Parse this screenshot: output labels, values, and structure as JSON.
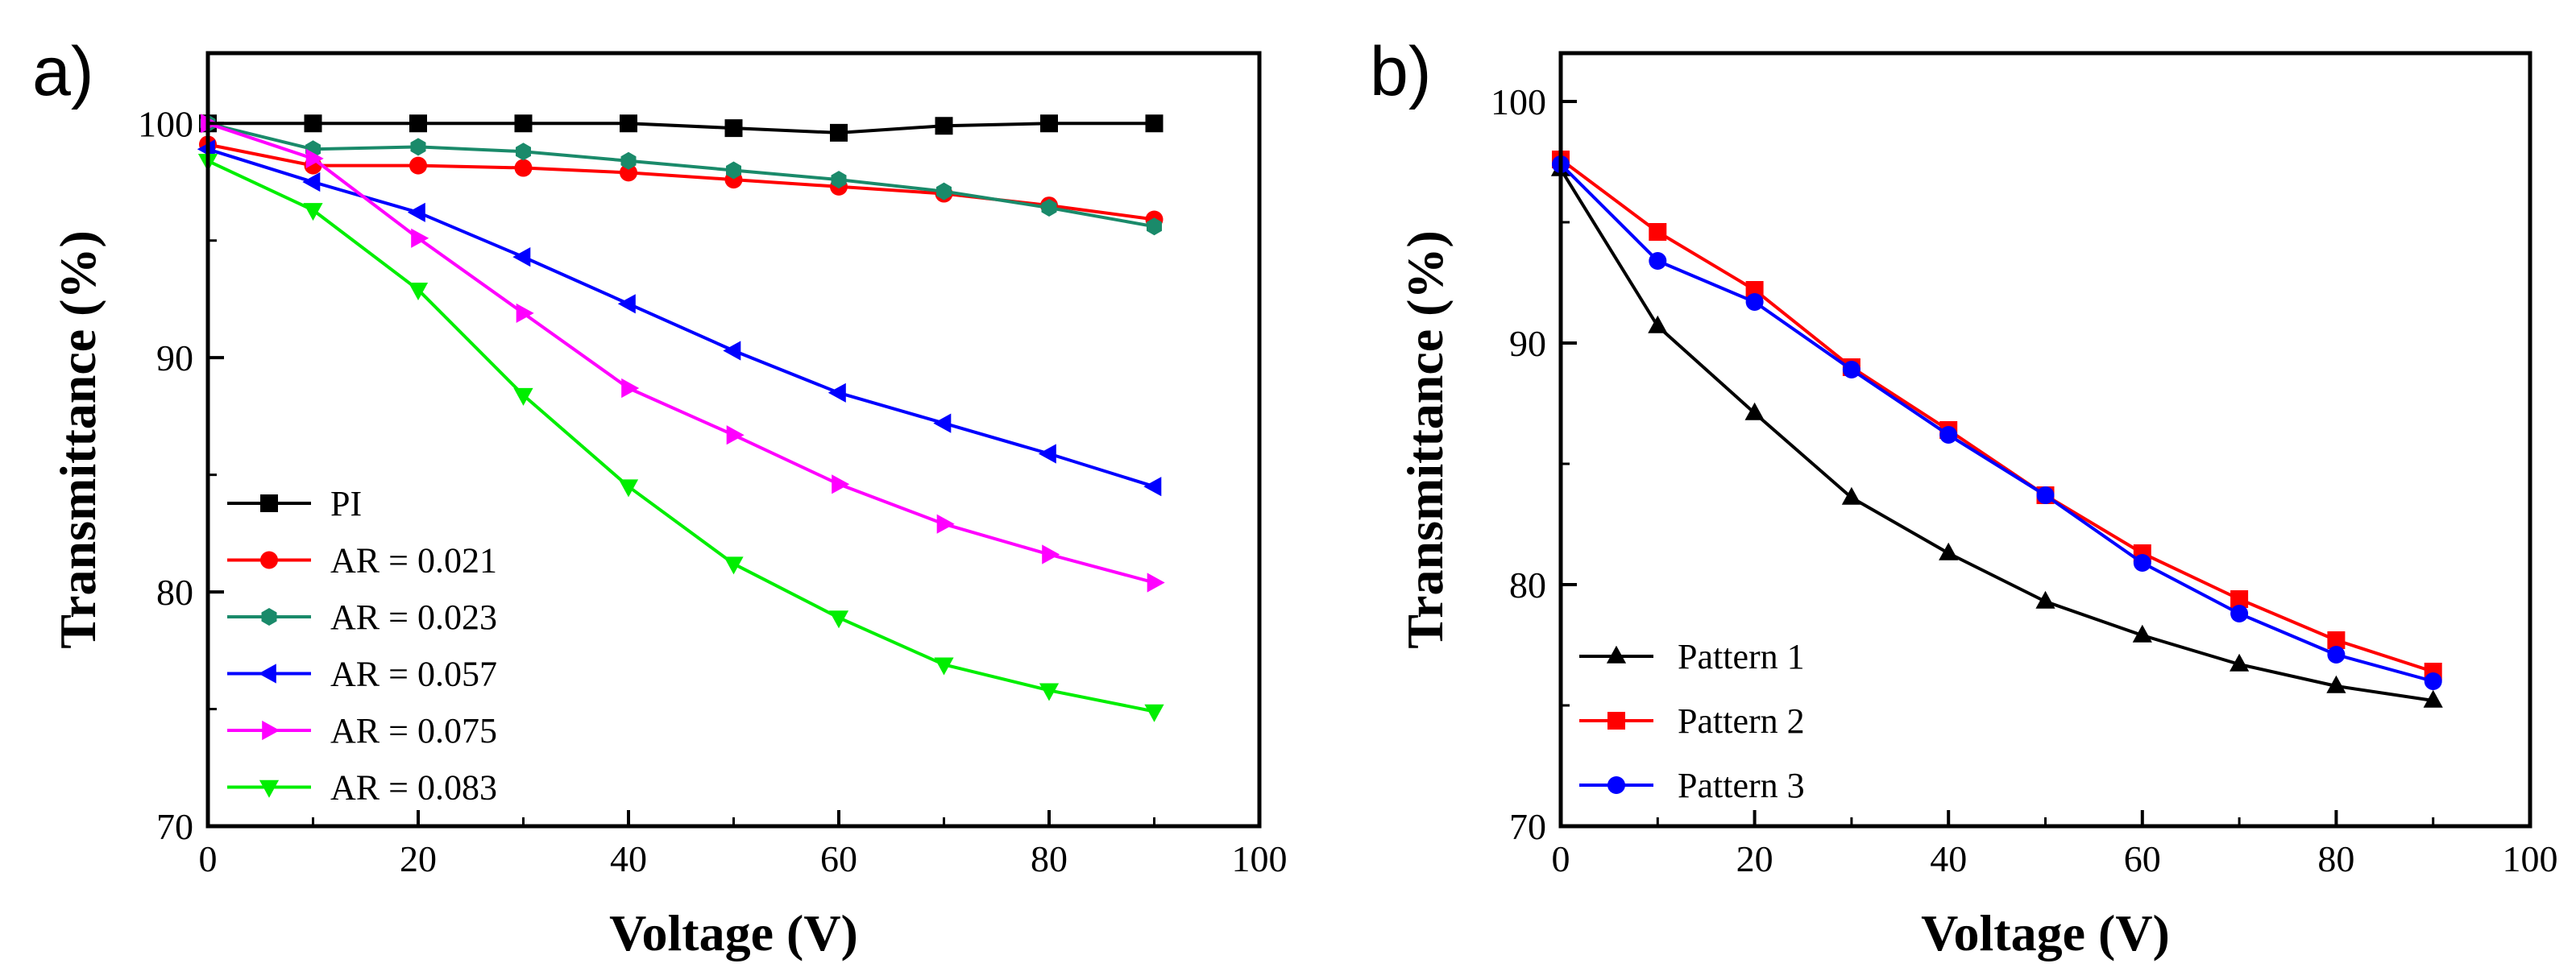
{
  "chart_data": [
    {
      "type": "line",
      "panel_label": "a)",
      "xlabel": "Voltage (V)",
      "ylabel": "Transmittance (%)",
      "xlim": [
        0,
        100
      ],
      "ylim": [
        70,
        103
      ],
      "xticks": [
        0,
        20,
        40,
        60,
        80,
        100
      ],
      "yticks": [
        70,
        80,
        90,
        100
      ],
      "x": [
        0,
        10,
        20,
        30,
        40,
        50,
        60,
        70,
        80,
        90
      ],
      "legend_position": "bottom-left",
      "series": [
        {
          "name": "PI",
          "color": "#000000",
          "marker": "square",
          "values": [
            100,
            100,
            100,
            100,
            100,
            99.8,
            99.6,
            99.9,
            100,
            100
          ]
        },
        {
          "name": "AR = 0.021",
          "color": "#ff0000",
          "marker": "circle",
          "values": [
            99.1,
            98.2,
            98.2,
            98.1,
            97.9,
            97.6,
            97.3,
            97.0,
            96.5,
            95.9
          ]
        },
        {
          "name": "AR = 0.023",
          "color": "#1a8a6a",
          "marker": "hexagon",
          "values": [
            100,
            98.9,
            99.0,
            98.8,
            98.4,
            98.0,
            97.6,
            97.1,
            96.4,
            95.6
          ]
        },
        {
          "name": "AR = 0.057",
          "color": "#0000ff",
          "marker": "triangle-left",
          "values": [
            98.9,
            97.5,
            96.2,
            94.3,
            92.3,
            90.3,
            88.5,
            87.2,
            85.9,
            84.5
          ]
        },
        {
          "name": "AR = 0.075",
          "color": "#ff00ff",
          "marker": "triangle-right",
          "values": [
            100,
            98.5,
            95.1,
            91.9,
            88.7,
            86.7,
            84.6,
            82.9,
            81.6,
            80.4
          ]
        },
        {
          "name": "AR = 0.083",
          "color": "#00ee00",
          "marker": "triangle-down",
          "values": [
            98.4,
            96.3,
            92.9,
            88.4,
            84.5,
            81.2,
            78.9,
            76.9,
            75.8,
            74.9
          ]
        }
      ]
    },
    {
      "type": "line",
      "panel_label": "b)",
      "xlabel": "Voltage (V)",
      "ylabel": "Transmittance (%)",
      "xlim": [
        0,
        100
      ],
      "ylim": [
        70,
        102
      ],
      "xticks": [
        0,
        20,
        40,
        60,
        80,
        100
      ],
      "yticks": [
        70,
        80,
        90,
        100
      ],
      "x": [
        0,
        10,
        20,
        30,
        40,
        50,
        60,
        70,
        80,
        90
      ],
      "legend_position": "bottom-left",
      "series": [
        {
          "name": "Pattern 1",
          "color": "#000000",
          "marker": "triangle-up",
          "values": [
            97.2,
            90.7,
            87.1,
            83.6,
            81.3,
            79.3,
            77.9,
            76.7,
            75.8,
            75.2
          ]
        },
        {
          "name": "Pattern 2",
          "color": "#ff0000",
          "marker": "square",
          "values": [
            97.6,
            94.6,
            92.2,
            89.0,
            86.4,
            83.7,
            81.3,
            79.4,
            77.7,
            76.4
          ]
        },
        {
          "name": "Pattern 3",
          "color": "#0000ff",
          "marker": "circle",
          "values": [
            97.4,
            93.4,
            91.7,
            88.9,
            86.2,
            83.7,
            80.9,
            78.8,
            77.1,
            76.0
          ]
        }
      ]
    }
  ]
}
